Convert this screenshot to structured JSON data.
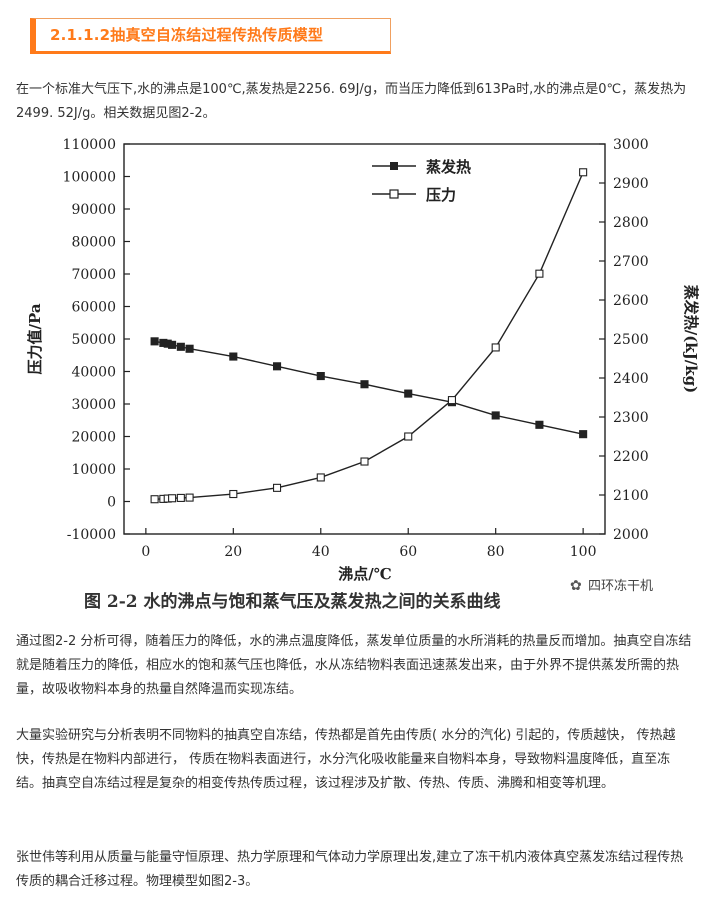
{
  "heading": {
    "title": "2.1.1.2抽真空自冻结过程传热传质模型"
  },
  "intro": "在一个标准大气压下,水的沸点是100℃,蒸发热是2256. 69J/g，而当压力降低到613Pa时,水的沸点是0℃，蒸发热为2499. 52J/g。相关数据见图2-2。",
  "figure": {
    "caption": "图 2-2   水的沸点与饱和蒸气压及蒸发热之间的关系曲线",
    "watermark": "四环冻干机"
  },
  "chart_data": {
    "type": "line",
    "xlabel": "沸点/℃",
    "ylabel_left": "压力值/Pa",
    "ylabel_right": "蒸发热/(kJ/kg)",
    "xlim": [
      -5,
      105
    ],
    "ylim_left": [
      -10000,
      110000
    ],
    "ylim_right": [
      2000,
      3000
    ],
    "x_ticks": [
      "0",
      "20",
      "40",
      "60",
      "80",
      "100"
    ],
    "y_ticks_left": [
      "110000",
      "100000",
      "90000",
      "80000",
      "70000",
      "60000",
      "50000",
      "40000",
      "30000",
      "20000",
      "10000",
      "0",
      "-10000"
    ],
    "y_ticks_right": [
      "3000",
      "2900",
      "2800",
      "2700",
      "2600",
      "2500",
      "2400",
      "2300",
      "2200",
      "2100",
      "2000"
    ],
    "legend_position": "top-center",
    "series": [
      {
        "name": "蒸发热",
        "axis": "right",
        "marker": "filled-square",
        "x": [
          2,
          4,
          5,
          6,
          8,
          10,
          20,
          30,
          40,
          50,
          60,
          70,
          80,
          90,
          100
        ],
        "y": [
          2494,
          2490,
          2488,
          2485,
          2480,
          2475,
          2455,
          2430,
          2405,
          2384,
          2360,
          2338,
          2304,
          2280,
          2256
        ]
      },
      {
        "name": "压力",
        "axis": "left",
        "marker": "open-square",
        "x": [
          2,
          4,
          5,
          6,
          8,
          10,
          20,
          30,
          40,
          50,
          60,
          70,
          80,
          90,
          100
        ],
        "y": [
          700,
          800,
          900,
          1000,
          1100,
          1200,
          2300,
          4200,
          7400,
          12300,
          20000,
          31200,
          47400,
          70100,
          101300
        ]
      }
    ]
  },
  "body": {
    "p2": "通过图2-2 分析可得，随着压力的降低，水的沸点温度降低，蒸发单位质量的水所消耗的热量反而增加。抽真空自冻结就是随着压力的降低，相应水的饱和蒸气压也降低，水从冻结物料表面迅速蒸发出来，由于外界不提供蒸发所需的热量，故吸收物料本身的热量自然降温而实现冻结。",
    "p3": "大量实验研究与分析表明不同物料的抽真空自冻结，传热都是首先由传质( 水分的汽化) 引起的，传质越快， 传热越快，传热是在物料内部进行， 传质在物料表面进行，水分汽化吸收能量来自物料本身，导致物料温度降低，直至冻结。抽真空自冻结过程是复杂的相变传热传质过程，该过程涉及扩散、传热、传质、沸腾和相变等机理。",
    "p4": "张世伟等利用从质量与能量守恒原理、热力学原理和气体动力学原理出发,建立了冻干机内液体真空蒸发冻结过程传热传质的耦合迁移过程。物理模型如图2-3。"
  }
}
